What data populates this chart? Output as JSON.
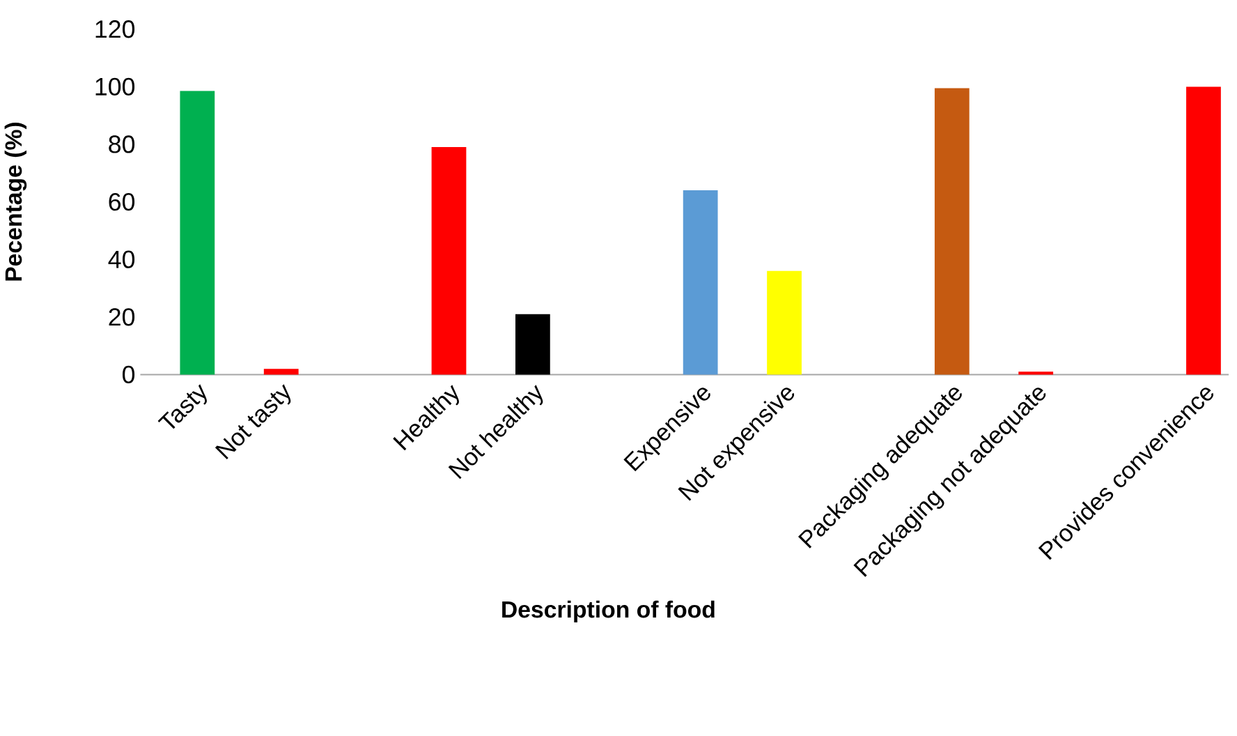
{
  "chart_data": {
    "type": "bar",
    "xlabel": "Description of food",
    "ylabel": "Pecentage (%)",
    "categories": [
      "Tasty",
      "Not tasty",
      null,
      "Healthy",
      "Not healthy",
      null,
      "Expensive",
      "Not expensive",
      null,
      "Packaging adequate",
      "Packaging not adequate",
      null,
      "Provides convenience"
    ],
    "values": [
      98.5,
      2,
      null,
      79,
      21,
      null,
      64,
      36,
      null,
      99.5,
      1,
      null,
      100
    ],
    "colors": [
      "#00b050",
      "#ff0000",
      null,
      "#ff0000",
      "#000000",
      null,
      "#5b9bd5",
      "#ffff00",
      null,
      "#c55a11",
      "#ff0000",
      null,
      "#ff0000"
    ],
    "ylim": [
      0,
      120
    ],
    "yticks": [
      0,
      20,
      40,
      60,
      80,
      100,
      120
    ]
  }
}
